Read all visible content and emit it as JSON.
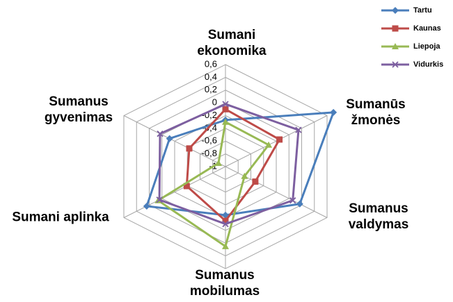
{
  "chart_data": {
    "type": "radar",
    "categories": [
      "Sumani ekonomika",
      "Sumanūs žmonės",
      "Sumanus valdymas",
      "Sumanus mobilumas",
      "Sumani aplinka",
      "Sumanus gyvenimas"
    ],
    "series": [
      {
        "name": "Tartu",
        "color": "#4a7ebb",
        "marker": "diamond",
        "values": [
          -0.27,
          0.7,
          0.17,
          -0.24,
          0.24,
          -0.12
        ]
      },
      {
        "name": "Kaunas",
        "color": "#be4b48",
        "marker": "square",
        "values": [
          -0.1,
          -0.15,
          -0.53,
          -0.15,
          -0.39,
          -0.43
        ]
      },
      {
        "name": "Liepoja",
        "color": "#98b954",
        "marker": "triangle",
        "values": [
          -0.3,
          -0.32,
          -0.7,
          0.25,
          0.06,
          -0.89
        ]
      },
      {
        "name": "Vidurkis",
        "color": "#7d5fa0",
        "marker": "x",
        "values": [
          -0.02,
          0.15,
          0.06,
          -0.1,
          0.04,
          0.03
        ]
      }
    ],
    "ylim": [
      -1,
      0.6
    ],
    "yticks": [
      -1,
      {
        "value": -0.8,
        "label": "-0,8"
      },
      {
        "value": -0.6,
        "label": "-0,6"
      },
      {
        "value": -0.4,
        "label": "-0,4"
      },
      {
        "value": -0.2,
        "label": "-0,2"
      },
      0,
      {
        "value": 0.2,
        "label": "0,2"
      },
      {
        "value": 0.4,
        "label": "0,4"
      },
      {
        "value": 0.6,
        "label": "0,6"
      }
    ],
    "grid": true,
    "legend": "top-right"
  }
}
